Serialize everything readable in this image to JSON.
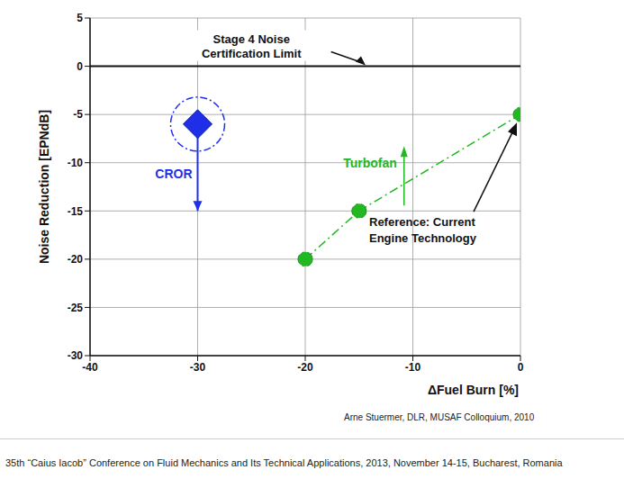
{
  "chart_data": {
    "type": "scatter",
    "xlabel": "ΔFuel Burn [%]",
    "ylabel": "Noise Reduction [EPNdB]",
    "xlim": [
      -40,
      0
    ],
    "ylim": [
      -30,
      5
    ],
    "xticks": [
      -40,
      -30,
      -20,
      -10,
      0
    ],
    "yticks": [
      -30,
      -25,
      -20,
      -15,
      -10,
      -5,
      0,
      5
    ],
    "grid": true,
    "series": [
      {
        "name": "Turbofan",
        "color": "#22b822",
        "type": "line",
        "line_style": "dashdot",
        "marker": "circle",
        "x": [
          -20,
          -15,
          0
        ],
        "values": [
          -20,
          -15,
          -5
        ]
      },
      {
        "name": "CROR",
        "color": "#1f2fe8",
        "type": "scatter",
        "marker": "diamond",
        "x": [
          -30
        ],
        "values": [
          -6
        ],
        "arrow_to": -15
      }
    ],
    "annotations": [
      {
        "text": "Stage 4 Noise Certification Limit",
        "y": 0
      },
      {
        "text": "Reference: Current Engine Technology",
        "x": 0,
        "y": -5
      }
    ],
    "source": "Arne Stuermer, DLR, MUSAF Colloquium, 2010",
    "footer": "35th “Caius Iacob” Conference on Fluid Mechanics and Its Technical Applications, 2013, November 14-15, Bucharest, Romania"
  }
}
